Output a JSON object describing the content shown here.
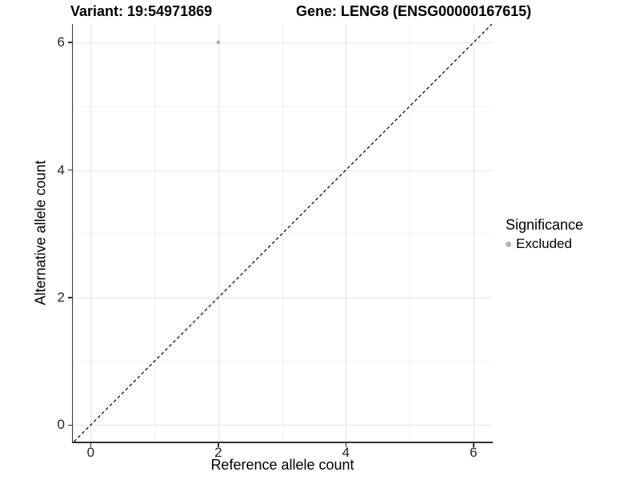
{
  "titles": {
    "variant": "Variant: 19:54971869",
    "gene": "Gene: LENG8 (ENSG00000167615)"
  },
  "legend": {
    "title": "Significance",
    "items": [
      {
        "label": "Excluded",
        "marker": "circle",
        "color": "#b3b3b3"
      }
    ]
  },
  "chart_data": {
    "type": "scatter",
    "title_left": "Variant: 19:54971869",
    "title_right": "Gene: LENG8 (ENSG00000167615)",
    "xlabel": "Reference allele count",
    "ylabel": "Alternative allele count",
    "xlim": [
      -0.28,
      6.29
    ],
    "ylim": [
      -0.26,
      6.29
    ],
    "x_ticks": [
      0,
      2,
      4,
      6
    ],
    "y_ticks": [
      0,
      2,
      4,
      6
    ],
    "x_minor_ticks": [
      1,
      3,
      5
    ],
    "y_minor_ticks": [
      1,
      3,
      5
    ],
    "grid": "major+minor",
    "legend_position": "right",
    "series": [
      {
        "name": "Excluded",
        "color": "#b3b3b3",
        "points": [
          [
            2,
            6
          ]
        ]
      }
    ],
    "reference_line": {
      "kind": "identity",
      "equation": "y = x",
      "style": "dashed",
      "color": "#000000",
      "dash": [
        4,
        3
      ]
    }
  },
  "colors": {
    "background": "#ffffff",
    "grid_major": "#e4e4e4",
    "grid_minor": "#f1f1f1",
    "axis_line": "#333333",
    "tick_label": "#262626"
  }
}
